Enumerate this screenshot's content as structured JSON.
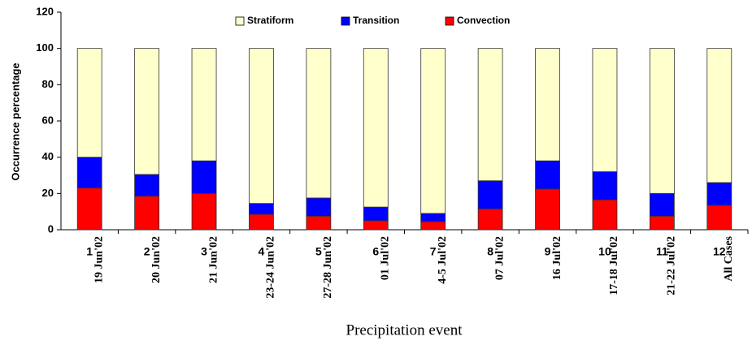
{
  "chart_data": {
    "type": "stacked-bar",
    "x_label": "Precipitation event",
    "y_label": "Occurrence percentage",
    "categories": [
      "1",
      "2",
      "3",
      "4",
      "5",
      "6",
      "7",
      "8",
      "9",
      "10",
      "11",
      "12"
    ],
    "event_labels": [
      "19 Jun'02",
      "20 Jun'02",
      "21 Jun'02",
      "23-24 Jun'02",
      "27-28 Jun'02",
      "01 Jul'02",
      "4-5 Jul'02",
      "07 Jul'02",
      "16 Jul'02",
      "17-18 Jul'02",
      "21-22 Jul'02",
      "All Cases"
    ],
    "series": [
      {
        "name": "Convection",
        "color": "#ff0000",
        "values": [
          23,
          18.5,
          20,
          8.5,
          7.5,
          5,
          4.5,
          11.5,
          22.5,
          16.5,
          7.5,
          13.5
        ]
      },
      {
        "name": "Transition",
        "color": "#0000ff",
        "values": [
          17,
          12,
          18,
          6,
          10,
          7.5,
          4.5,
          15.5,
          15.5,
          15.5,
          12.5,
          12.5
        ]
      },
      {
        "name": "Stratiform",
        "color": "#ffffcc",
        "values": [
          60,
          69.5,
          62,
          85.5,
          82.5,
          87.5,
          91,
          73,
          62,
          68,
          80,
          74
        ]
      }
    ],
    "legend_order": [
      2,
      1,
      0
    ],
    "ylim": [
      0,
      120
    ],
    "yticks": [
      0,
      20,
      40,
      60,
      80,
      100,
      120
    ],
    "grid": false
  }
}
